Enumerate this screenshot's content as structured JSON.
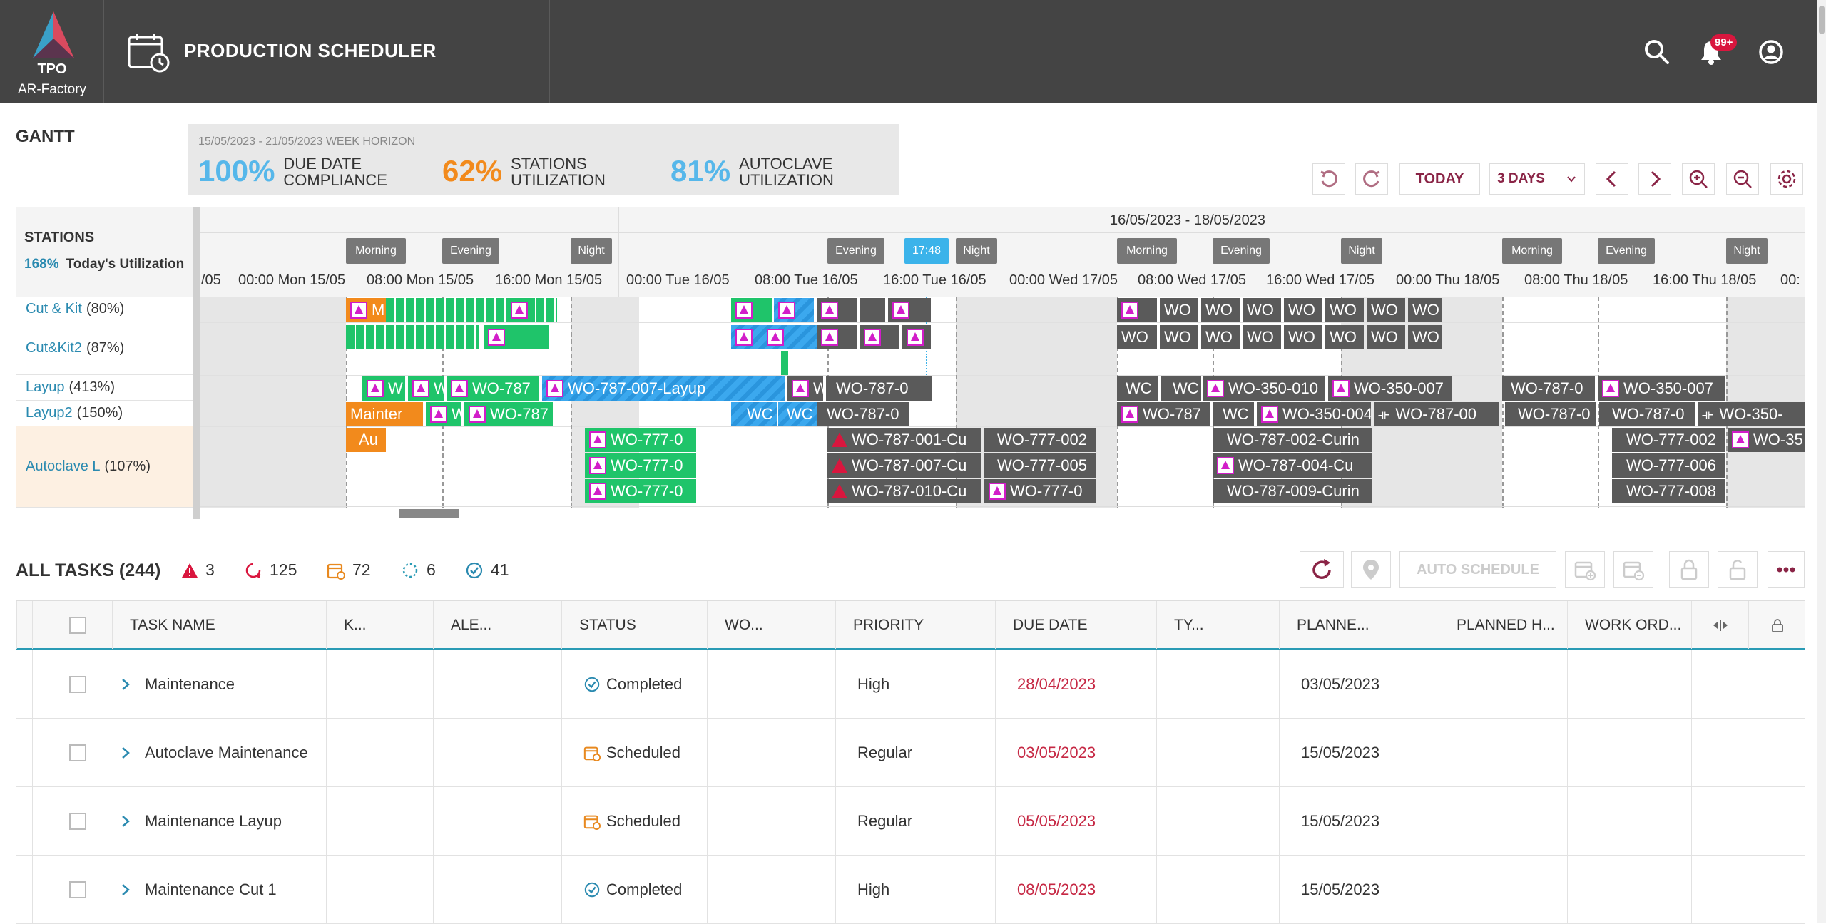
{
  "app": {
    "brand": "TPO",
    "factory": "AR-Factory",
    "title": "PRODUCTION SCHEDULER",
    "notifications": "99+"
  },
  "gantt": {
    "title": "GANTT",
    "horizon": "15/05/2023 - 21/05/2023 WEEK HORIZON",
    "kpis": [
      {
        "value": "100%",
        "label1": "DUE DATE",
        "label2": "COMPLIANCE",
        "color": "#56b7ea"
      },
      {
        "value": "62%",
        "label1": "STATIONS",
        "label2": "UTILIZATION",
        "color": "#f28a1c"
      },
      {
        "value": "81%",
        "label1": "AUTOCLAVE",
        "label2": "UTILIZATION",
        "color": "#56b7ea"
      }
    ],
    "today_label": "TODAY",
    "range_label": "3 DAYS",
    "stations_label": "STATIONS",
    "utilization_pct": "168%",
    "utilization_label": "Today's Utilization",
    "stations": [
      {
        "name": "Cut & Kit",
        "pct": "(80%)"
      },
      {
        "name": "Cut&Kit2",
        "pct": "(87%)"
      },
      {
        "name": "Layup",
        "pct": "(413%)"
      },
      {
        "name": "Layup2",
        "pct": "(150%)"
      },
      {
        "name": "Autoclave L",
        "pct": "(107%)"
      }
    ],
    "date_range": "16/05/2023 - 18/05/2023",
    "now": "17:48",
    "shifts": [
      "Morning",
      "Evening",
      "Night",
      "Evening",
      "Night",
      "Morning",
      "Evening",
      "Night",
      "Morning",
      "Evening",
      "Night"
    ],
    "ticks": [
      "/05",
      "00:00 Mon 15/05",
      "08:00 Mon 15/05",
      "16:00 Mon 15/05",
      "00:00 Tue 16/05",
      "08:00 Tue 16/05",
      "16:00 Tue 16/05",
      "00:00 Wed 17/05",
      "08:00 Wed 17/05",
      "16:00 Wed 17/05",
      "00:00 Thu 18/05",
      "08:00 Thu 18/05",
      "16:00 Thu 18/05",
      "00:"
    ],
    "bars": {
      "ck_m": "M",
      "ly_1": "W",
      "ly_2": "W",
      "ly_3": "WO-787",
      "ly_4": "WO-787-007-Layup",
      "ly_5": "W",
      "ly_6": "WO-787-0",
      "ly_7": "WC",
      "ly_8": "WC",
      "ly_9": "WO-350-010",
      "ly_10": "WO-350-007",
      "ly_11": "WO-787-0",
      "ly_12": "WO-350-007",
      "l2_1": "Mainter",
      "l2_2": "W",
      "l2_3": "WO-787",
      "l2_4": "WC",
      "l2_5": "WC",
      "l2_6": "WO-787-0",
      "l2_7": "WO-787",
      "l2_8": "WC",
      "l2_9": "WO-350-004",
      "l2_10": "WO-787-00",
      "l2_11": "WO-787-0",
      "l2_12": "WO-787-0",
      "l2_13": "WO-350-",
      "ac_1": "Au",
      "ac_a": "WO-777-0",
      "ac_b": "WO-777-0",
      "ac_c": "WO-777-0",
      "ac_d": "WO-787-001-Cu",
      "ac_e": "WO-787-007-Cu",
      "ac_f": "WO-787-010-Cu",
      "ac_g": "WO-777-002",
      "ac_h": "WO-777-005",
      "ac_i": "WO-777-0",
      "ac_j": "WO-787-002-Curin",
      "ac_k": "WO-787-004-Cu",
      "ac_l": "WO-787-009-Curin",
      "ac_m": "WO-777-002",
      "ac_n": "WO-777-006",
      "ac_o": "WO-777-008",
      "ac_p": "WO-35",
      "wc": "WC",
      "wo": "WO"
    }
  },
  "tasks": {
    "title": "ALL TASKS (244)",
    "counts": [
      {
        "icon": "alert-icon",
        "value": "3"
      },
      {
        "icon": "in-progress-icon",
        "value": "125"
      },
      {
        "icon": "scheduled-icon",
        "value": "72"
      },
      {
        "icon": "pending-icon",
        "value": "6"
      },
      {
        "icon": "completed-icon",
        "value": "41"
      }
    ],
    "auto_schedule": "AUTO SCHEDULE",
    "columns": [
      "TASK NAME",
      "K...",
      "ALE...",
      "STATUS",
      "WO...",
      "PRIORITY",
      "DUE DATE",
      "TY...",
      "PLANNE...",
      "PLANNED H...",
      "WORK ORD..."
    ],
    "rows": [
      {
        "name": "Maintenance",
        "status": "Completed",
        "status_icon": "completed-icon",
        "priority": "High",
        "due": "28/04/2023",
        "planned": "03/05/2023"
      },
      {
        "name": "Autoclave Maintenance",
        "status": "Scheduled",
        "status_icon": "scheduled-icon",
        "priority": "Regular",
        "due": "03/05/2023",
        "planned": "15/05/2023"
      },
      {
        "name": "Maintenance Layup",
        "status": "Scheduled",
        "status_icon": "scheduled-icon",
        "priority": "Regular",
        "due": "05/05/2023",
        "planned": "15/05/2023"
      },
      {
        "name": "Maintenance Cut 1",
        "status": "Completed",
        "status_icon": "completed-icon",
        "priority": "High",
        "due": "08/05/2023",
        "planned": "15/05/2023"
      }
    ]
  },
  "colors": {
    "accent": "#8a2446",
    "header": "#444444",
    "due_red": "#c62844",
    "teal": "#2a9bb5"
  }
}
